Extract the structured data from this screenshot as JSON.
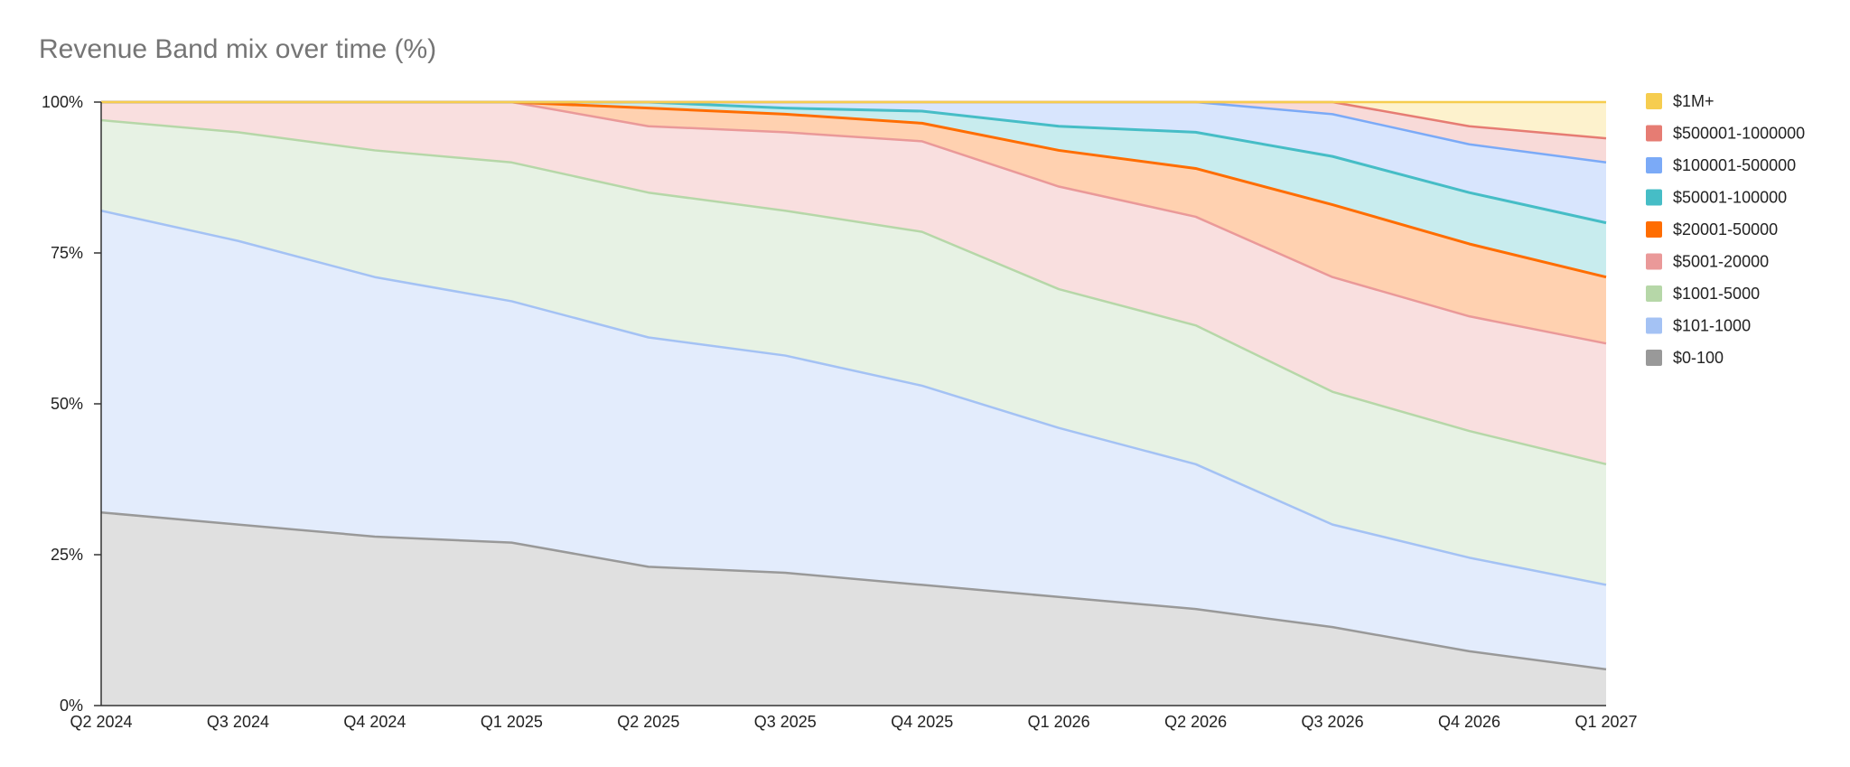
{
  "chart_data": {
    "type": "area",
    "stacked": true,
    "normalized_percent": true,
    "title": "Revenue Band mix over time (%)",
    "xlabel": "",
    "ylabel": "",
    "ylim": [
      0,
      100
    ],
    "y_ticks": [
      {
        "value": 0,
        "label": "0%"
      },
      {
        "value": 25,
        "label": "25%"
      },
      {
        "value": 50,
        "label": "50%"
      },
      {
        "value": 75,
        "label": "75%"
      },
      {
        "value": 100,
        "label": "100%"
      }
    ],
    "grid": true,
    "legend_position": "right",
    "categories": [
      "Q2 2024",
      "Q3 2024",
      "Q4 2024",
      "Q1 2025",
      "Q2 2025",
      "Q3 2025",
      "Q4 2025",
      "Q1 2026",
      "Q2 2026",
      "Q3 2026",
      "Q4 2026",
      "Q1 2027"
    ],
    "series": [
      {
        "name": "$0-100",
        "color": "#999999",
        "fill": "#e0e0e0",
        "values": [
          32,
          30,
          28,
          27,
          23,
          22,
          20,
          18,
          16,
          13,
          9,
          6
        ]
      },
      {
        "name": "$101-1000",
        "color": "#a4c2f4",
        "fill": "#e3ecfc",
        "values": [
          50,
          47,
          43,
          40,
          38,
          36,
          33,
          28,
          24,
          17,
          15.5,
          14
        ]
      },
      {
        "name": "$1001-5000",
        "color": "#b6d7a8",
        "fill": "#e7f2e4",
        "values": [
          15,
          18,
          21,
          23,
          24,
          24,
          25.5,
          23,
          23,
          22,
          21,
          20
        ]
      },
      {
        "name": "$5001-20000",
        "color": "#ea9999",
        "fill": "#f9dfdf",
        "values": [
          3,
          5,
          8,
          10,
          11,
          13,
          15,
          17,
          18,
          19,
          19,
          20
        ]
      },
      {
        "name": "$20001-50000",
        "color": "#ff6d01",
        "fill": "#ffd1b0",
        "values": [
          0,
          0,
          0,
          0,
          3,
          3,
          3,
          6,
          8,
          12,
          12,
          11
        ]
      },
      {
        "name": "$50001-100000",
        "color": "#46bdc6",
        "fill": "#c8ecee",
        "values": [
          0,
          0,
          0,
          0,
          1,
          1,
          2,
          4,
          6,
          8,
          8.5,
          9
        ]
      },
      {
        "name": "$100001-500000",
        "color": "#7baaf7",
        "fill": "#d8e5fd",
        "values": [
          0,
          0,
          0,
          0,
          0,
          1,
          1.5,
          4,
          5,
          7,
          8,
          10
        ]
      },
      {
        "name": "$500001-1000000",
        "color": "#e67c73",
        "fill": "#f8dad8",
        "values": [
          0,
          0,
          0,
          0,
          0,
          0,
          0,
          0,
          0,
          2,
          3,
          4
        ]
      },
      {
        "name": "$1M+",
        "color": "#f6cd4f",
        "fill": "#fdf2cd",
        "values": [
          0,
          0,
          0,
          0,
          0,
          0,
          0,
          0,
          0,
          0,
          4,
          6
        ]
      }
    ]
  }
}
